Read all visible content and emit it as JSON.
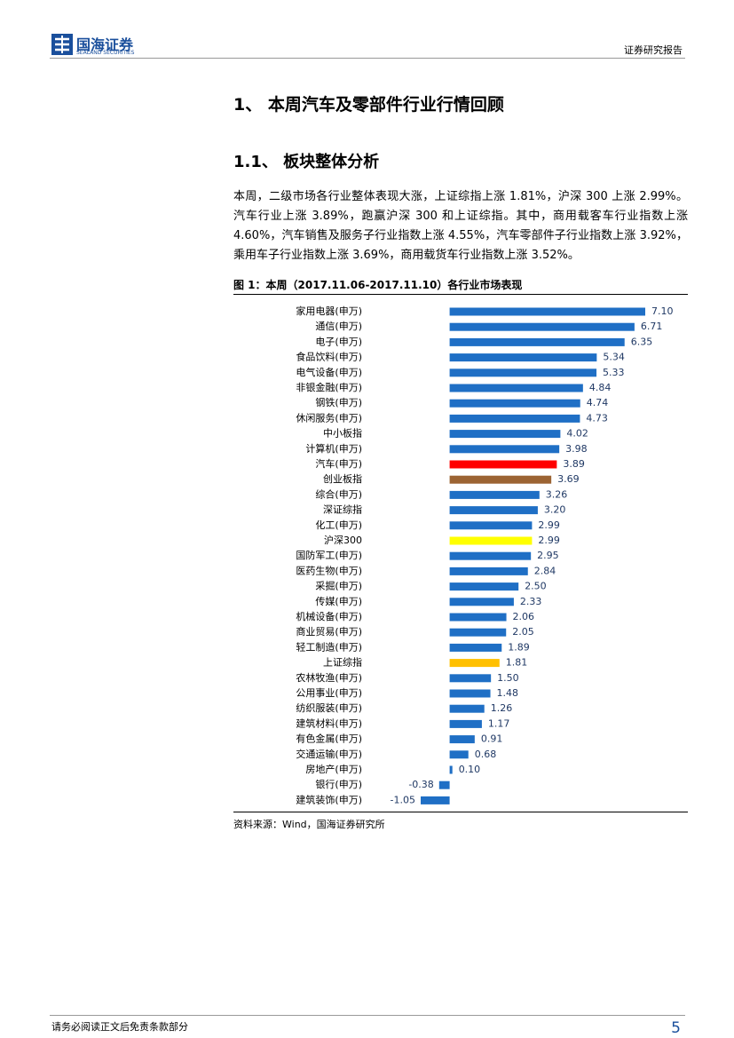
{
  "header": {
    "brand": "国海证券",
    "brand_en": "SEALAND SECURITIES",
    "report_type": "证券研究报告"
  },
  "heading1": "1、 本周汽车及零部件行业行情回顾",
  "heading2": "1.1、 板块整体分析",
  "paragraph": "本周，二级市场各行业整体表现大涨，上证综指上涨 1.81%，沪深 300 上涨 2.99%。汽车行业上涨 3.89%，跑赢沪深 300 和上证综指。其中，商用载客车行业指数上涨 4.60%，汽车销售及服务子行业指数上涨 4.55%，汽车零部件子行业指数上涨 3.92%，乘用车子行业指数上涨 3.69%，商用载货车行业指数上涨 3.52%。",
  "figure_caption": "图 1：本周（2017.11.06-2017.11.10）各行业市场表现",
  "chart_data": {
    "type": "bar",
    "orientation": "horizontal",
    "categories": [
      "家用电器(申万)",
      "通信(申万)",
      "电子(申万)",
      "食品饮料(申万)",
      "电气设备(申万)",
      "非银金融(申万)",
      "钢铁(申万)",
      "休闲服务(申万)",
      "中小板指",
      "计算机(申万)",
      "汽车(申万)",
      "创业板指",
      "综合(申万)",
      "深证综指",
      "化工(申万)",
      "沪深300",
      "国防军工(申万)",
      "医药生物(申万)",
      "采掘(申万)",
      "传媒(申万)",
      "机械设备(申万)",
      "商业贸易(申万)",
      "轻工制造(申万)",
      "上证综指",
      "农林牧渔(申万)",
      "公用事业(申万)",
      "纺织服装(申万)",
      "建筑材料(申万)",
      "有色金属(申万)",
      "交通运输(申万)",
      "房地产(申万)",
      "银行(申万)",
      "建筑装饰(申万)"
    ],
    "values": [
      7.1,
      6.71,
      6.35,
      5.34,
      5.33,
      4.84,
      4.74,
      4.73,
      4.02,
      3.98,
      3.89,
      3.69,
      3.26,
      3.2,
      2.99,
      2.99,
      2.95,
      2.84,
      2.5,
      2.33,
      2.06,
      2.05,
      1.89,
      1.81,
      1.5,
      1.48,
      1.26,
      1.17,
      0.91,
      0.68,
      0.1,
      -0.38,
      -1.05
    ],
    "value_labels": [
      "7.10",
      "6.71",
      "6.35",
      "5.34",
      "5.33",
      "4.84",
      "4.74",
      "4.73",
      "4.02",
      "3.98",
      "3.89",
      "3.69",
      "3.26",
      "3.20",
      "2.99",
      "2.99",
      "2.95",
      "2.84",
      "2.50",
      "2.33",
      "2.06",
      "2.05",
      "1.89",
      "1.81",
      "1.50",
      "1.48",
      "1.26",
      "1.17",
      "0.91",
      "0.68",
      "0.10",
      "-0.38",
      "-1.05"
    ],
    "color": "#1f6fc5",
    "colors": {
      "10": "#ff0000",
      "11": "#9c6433",
      "15": "#ffff00",
      "23": "#ffc000"
    }
  },
  "source": "资料来源：Wind，国海证券研究所",
  "footer": {
    "disclaimer": "请务必阅读正文后免责条款部分",
    "page": "5"
  }
}
